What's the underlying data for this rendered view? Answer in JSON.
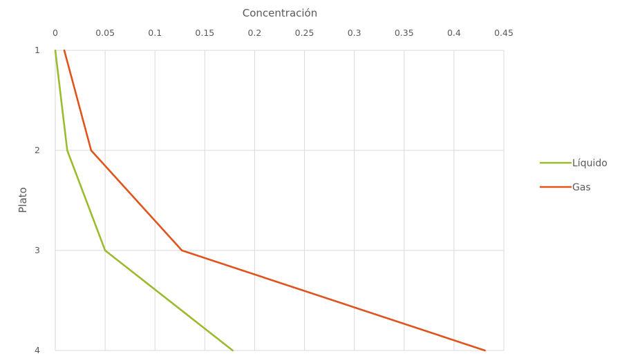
{
  "chart_data": {
    "type": "line",
    "title": "",
    "xlabel": "Concentración",
    "ylabel": "Plato",
    "xlim": [
      0,
      0.45
    ],
    "ylim": [
      1,
      4
    ],
    "y_inverted": true,
    "x_axis_position": "top",
    "grid": true,
    "legend_position": "right",
    "x_ticks": [
      "0",
      "0.05",
      "0.1",
      "0.15",
      "0.2",
      "0.25",
      "0.3",
      "0.35",
      "0.4",
      "0.45"
    ],
    "y_ticks": [
      "1",
      "2",
      "3",
      "4"
    ],
    "series": [
      {
        "name": "Líquido",
        "color": "#9bbb2f",
        "points": [
          [
            0.0,
            1
          ],
          [
            0.012,
            2
          ],
          [
            0.05,
            3
          ],
          [
            0.178,
            4
          ]
        ]
      },
      {
        "name": "Gas",
        "color": "#e0531b",
        "points": [
          [
            0.009,
            1
          ],
          [
            0.036,
            2
          ],
          [
            0.127,
            3
          ],
          [
            0.431,
            4
          ]
        ]
      }
    ]
  }
}
